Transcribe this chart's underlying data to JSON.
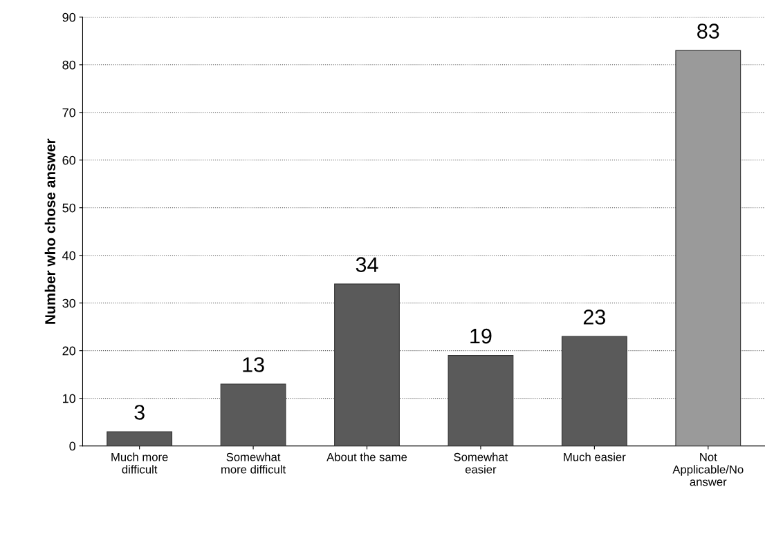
{
  "chart_data": {
    "type": "bar",
    "ylabel": "Number who chose answer",
    "categories": [
      "Much more\ndifficult",
      "Somewhat\nmore difficult",
      "About the same",
      "Somewhat\neasier",
      "Much easier",
      "Not\nApplicable/No\nanswer"
    ],
    "values": [
      3,
      13,
      34,
      19,
      23,
      83
    ],
    "colors": [
      "#5a5a5a",
      "#5a5a5a",
      "#5a5a5a",
      "#5a5a5a",
      "#5a5a5a",
      "#9a9a9a"
    ],
    "ylim": [
      0,
      90
    ],
    "yticks": [
      0,
      10,
      20,
      30,
      40,
      50,
      60,
      70,
      80,
      90
    ],
    "grid": "y",
    "data_labels": true
  }
}
